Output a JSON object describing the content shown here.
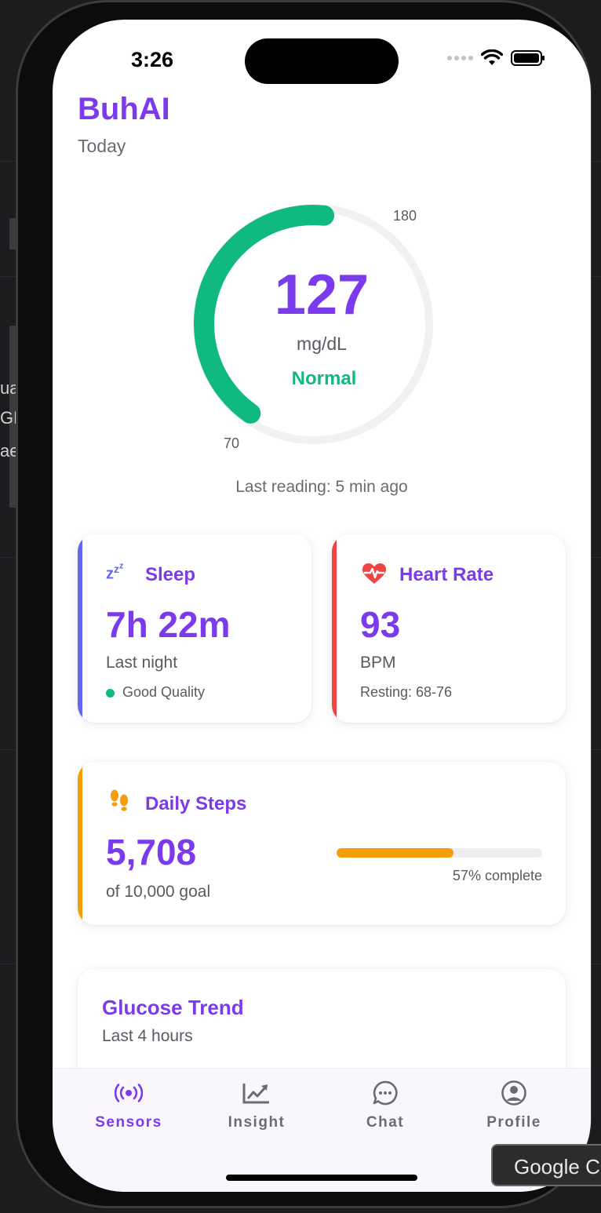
{
  "background": {
    "fragments": [
      "ua",
      "GM",
      "ae"
    ],
    "tooltip": "Google C"
  },
  "status_bar": {
    "time": "3:26"
  },
  "header": {
    "title": "BuhAI",
    "subtitle": "Today"
  },
  "glucose": {
    "value": "127",
    "unit": "mg/dL",
    "status": "Normal",
    "range_min": "70",
    "range_max": "180",
    "level_fraction": 0.52,
    "last_reading": "Last reading: 5 min ago",
    "color": "#10b981"
  },
  "sleep": {
    "icon": "zzz-icon",
    "title": "Sleep",
    "value": "7h 22m",
    "subtitle": "Last night",
    "quality": "Good Quality",
    "accent": "#6366f1"
  },
  "heart_rate": {
    "icon": "heartbeat-icon",
    "title": "Heart Rate",
    "value": "93",
    "unit": "BPM",
    "resting": "Resting: 68-76",
    "accent": "#ef4444"
  },
  "steps": {
    "icon": "footprints-icon",
    "title": "Daily Steps",
    "value": "5,708",
    "goal": "of 10,000 goal",
    "progress": 0.57,
    "progress_text": "57% complete",
    "accent": "#f59e0b"
  },
  "trend": {
    "title": "Glucose Trend",
    "subtitle": "Last 4 hours"
  },
  "tabs": [
    {
      "label": "Sensors",
      "icon": "sensors-icon",
      "active": true
    },
    {
      "label": "Insight",
      "icon": "chart-icon",
      "active": false
    },
    {
      "label": "Chat",
      "icon": "chat-icon",
      "active": false
    },
    {
      "label": "Profile",
      "icon": "profile-icon",
      "active": false
    }
  ],
  "colors": {
    "brand": "#7c3aed",
    "normal": "#10b981"
  }
}
